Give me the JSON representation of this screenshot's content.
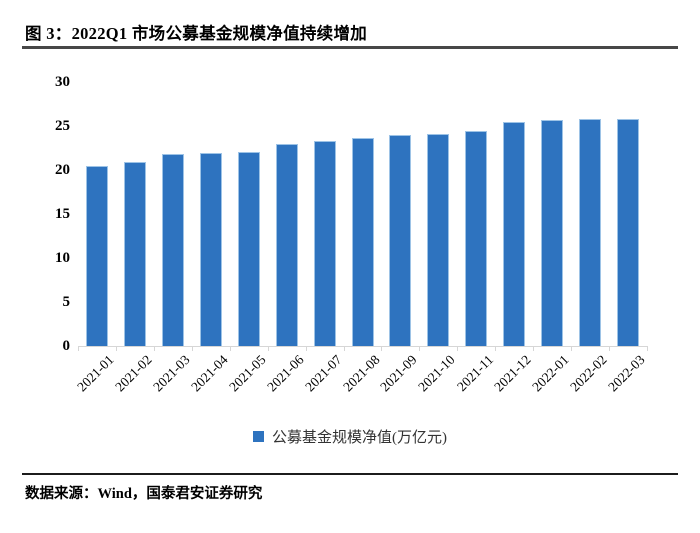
{
  "header": {
    "title": "图 3：2022Q1 市场公募基金规模净值持续增加"
  },
  "chart_data": {
    "type": "bar",
    "title": "图 3：2022Q1 市场公募基金规模净值持续增加",
    "categories": [
      "2021-01",
      "2021-02",
      "2021-03",
      "2021-04",
      "2021-05",
      "2021-06",
      "2021-07",
      "2021-08",
      "2021-09",
      "2021-10",
      "2021-11",
      "2021-12",
      "2022-01",
      "2022-02",
      "2022-03"
    ],
    "values": [
      20.5,
      20.9,
      21.8,
      21.9,
      22.0,
      23.0,
      23.3,
      23.6,
      24.0,
      24.1,
      24.4,
      25.5,
      25.7,
      25.8,
      25.8
    ],
    "series_name": "公募基金规模净值(万亿元)",
    "legend_entries": [
      "公募基金规模净值(万亿元)"
    ],
    "legend_position": "bottom",
    "xlabel": "",
    "ylabel": "",
    "ylim": [
      0,
      30
    ],
    "yticks": [
      0,
      5,
      10,
      15,
      20,
      25,
      30
    ],
    "grid": false,
    "bar_color": "#2E73BF",
    "bar_border_color": "#9DC3E6",
    "axis_color": "#D6D6D6"
  },
  "legend": {
    "label": "公募基金规模净值(万亿元)"
  },
  "footer": {
    "source": "数据来源：Wind，国泰君安证券研究"
  }
}
